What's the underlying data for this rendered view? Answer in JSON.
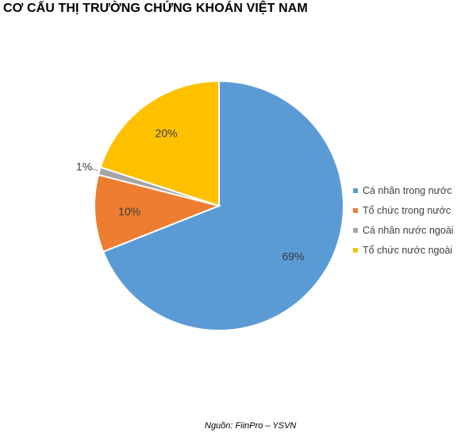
{
  "chart_data": {
    "type": "pie",
    "title": "CƠ CẤU THỊ TRƯỜNG CHỨNG KHOÁN VIỆT NAM",
    "categories": [
      "Cá nhân trong nước",
      "Tổ chức trong nước",
      "Cá nhân nước ngoài",
      "Tổ chức nước ngoài"
    ],
    "values": [
      69,
      10,
      1,
      20
    ],
    "labels": [
      "69%",
      "10%",
      "1%",
      "20%"
    ],
    "colors": [
      "#5B9BD5",
      "#ED7D31",
      "#A5A5A5",
      "#FFC000"
    ],
    "legend_position": "right",
    "source": "Nguồn: FiinPro – YSVN"
  }
}
